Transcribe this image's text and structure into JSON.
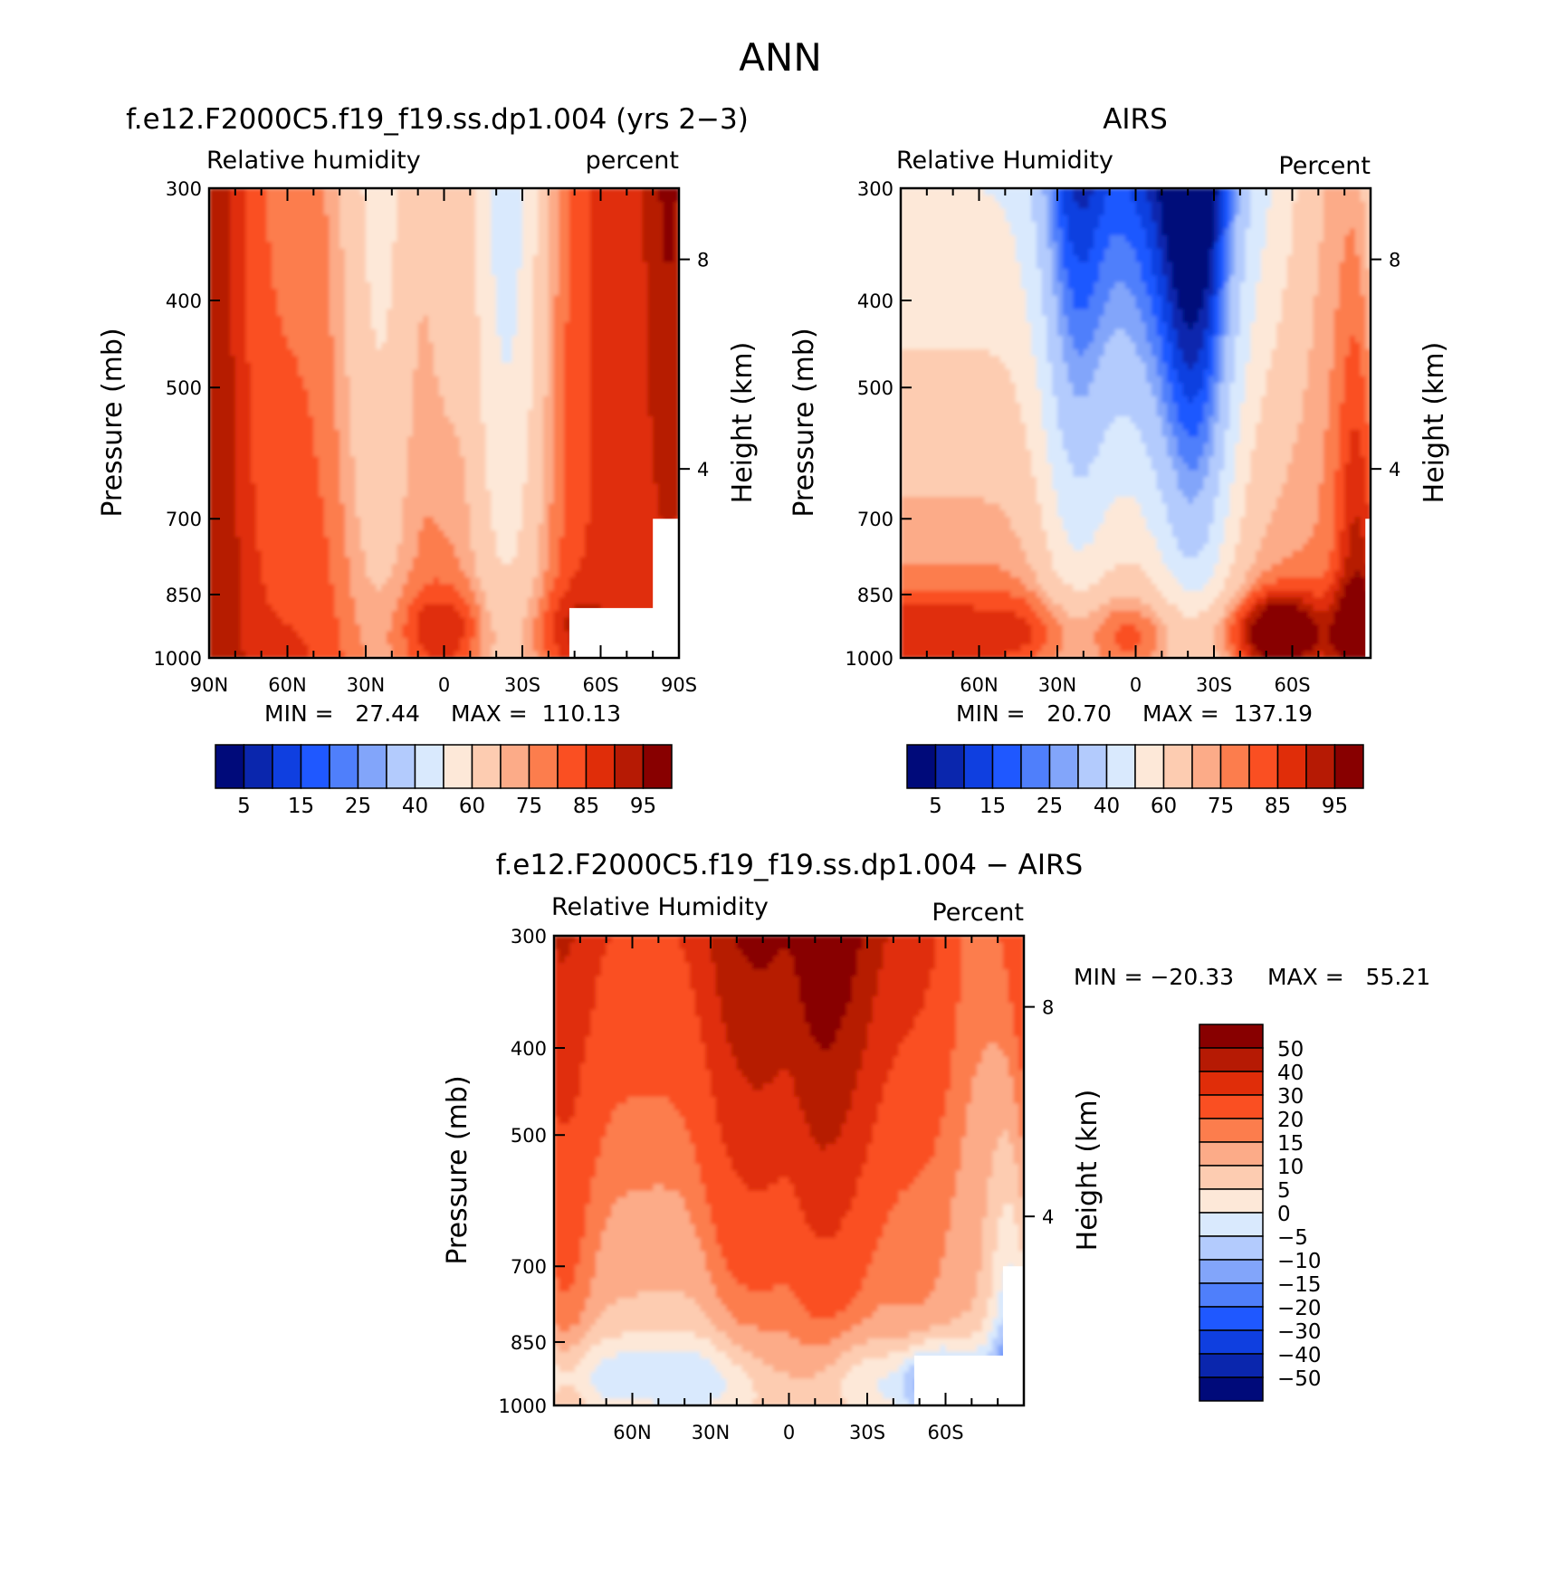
{
  "figure": {
    "title": "ANN"
  },
  "chart_data": [
    {
      "type": "heatmap",
      "panel": "model",
      "title": "f.e12.F2000C5.f19_f19.ss.dp1.004 (yrs 2−3)",
      "left_label": "Relative humidity",
      "right_label": "percent",
      "xlabel": "",
      "ylabel": "Pressure (mb)",
      "ylabel_right": "Height (km)",
      "x_ticks": [
        "90N",
        "60N",
        "30N",
        "0",
        "30S",
        "60S",
        "90S"
      ],
      "y_ticks": [
        "300",
        "400",
        "500",
        "700",
        "850",
        "1000"
      ],
      "y_ticks_right": [
        "8",
        "4"
      ],
      "ylim": [
        1000,
        300
      ],
      "min_text": "MIN =   27.44",
      "max_text": "MAX =  110.13",
      "min": 27.44,
      "max": 110.13,
      "colorbar_labels": [
        "5",
        "15",
        "25",
        "40",
        "60",
        "75",
        "85",
        "95"
      ]
    },
    {
      "type": "heatmap",
      "panel": "obs",
      "title": "AIRS",
      "left_label": "Relative Humidity",
      "right_label": "Percent",
      "xlabel": "",
      "ylabel": "Pressure (mb)",
      "ylabel_right": "Height (km)",
      "x_ticks": [
        "60N",
        "30N",
        "0",
        "30S",
        "60S"
      ],
      "y_ticks": [
        "300",
        "400",
        "500",
        "700",
        "850",
        "1000"
      ],
      "y_ticks_right": [
        "8",
        "4"
      ],
      "ylim": [
        1000,
        300
      ],
      "min_text": "MIN =   20.70",
      "max_text": "MAX =  137.19",
      "min": 20.7,
      "max": 137.19,
      "colorbar_labels": [
        "5",
        "15",
        "25",
        "40",
        "60",
        "75",
        "85",
        "95"
      ]
    },
    {
      "type": "heatmap",
      "panel": "diff",
      "title": "f.e12.F2000C5.f19_f19.ss.dp1.004 − AIRS",
      "left_label": "Relative Humidity",
      "right_label": "Percent",
      "xlabel": "",
      "ylabel": "Pressure (mb)",
      "ylabel_right": "Height (km)",
      "x_ticks": [
        "60N",
        "30N",
        "0",
        "30S",
        "60S"
      ],
      "y_ticks": [
        "300",
        "400",
        "500",
        "700",
        "850",
        "1000"
      ],
      "y_ticks_right": [
        "8",
        "4"
      ],
      "ylim": [
        1000,
        300
      ],
      "min_text": "MIN = −20.33",
      "max_text": "MAX =   55.21",
      "min": -20.33,
      "max": 55.21,
      "colorbar_labels": [
        "50",
        "40",
        "30",
        "20",
        "15",
        "10",
        "5",
        "0",
        "−5",
        "−10",
        "−15",
        "−20",
        "−30",
        "−40",
        "−50"
      ]
    }
  ],
  "colors": {
    "rh_scale": [
      "#000a7a",
      "#0a26ad",
      "#0f3fe0",
      "#1f58ff",
      "#4f7ffb",
      "#82a5fa",
      "#b3cbfd",
      "#d9e9fd",
      "#fde8d8",
      "#fdccb1",
      "#fcab88",
      "#fc7d4d",
      "#fa4f22",
      "#e02d09",
      "#b61a04",
      "#880000"
    ],
    "diff_scale": [
      "#880000",
      "#b61a04",
      "#e02d09",
      "#fa4f22",
      "#fc7d4d",
      "#fcab88",
      "#fdccb1",
      "#fde8d8",
      "#d9e9fd",
      "#b3cbfd",
      "#82a5fa",
      "#4f7ffb",
      "#1f58ff",
      "#0f3fe0",
      "#0a26ad",
      "#000a7a"
    ]
  }
}
